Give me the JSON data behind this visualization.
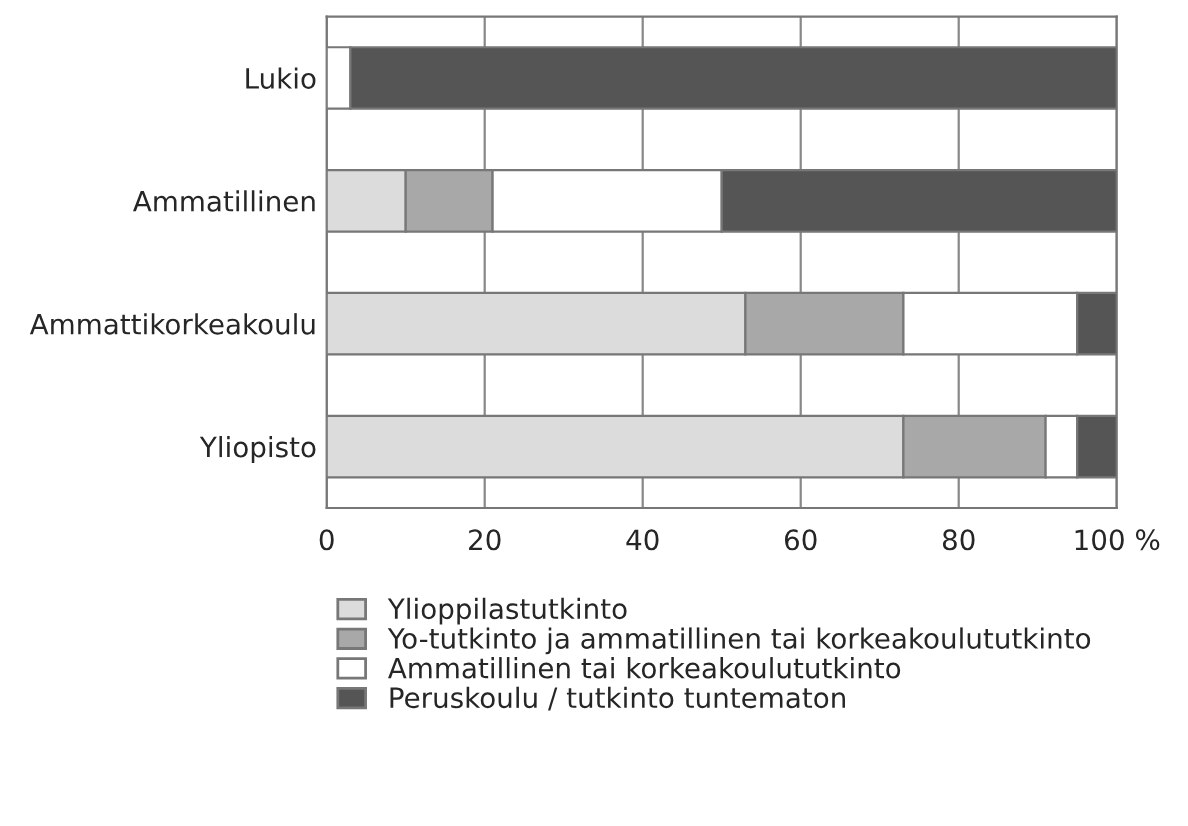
{
  "chart_data": {
    "type": "bar",
    "orientation": "horizontal",
    "stacked": true,
    "categories": [
      "Lukio",
      "Ammatillinen",
      "Ammattikorkeakoulu",
      "Yliopisto"
    ],
    "series": [
      {
        "name": "Ylioppilastutkinto",
        "color": "#dcdcdc",
        "values": [
          0,
          10,
          53,
          73
        ]
      },
      {
        "name": "Yo-tutkinto ja ammatillinen tai korkeakoulututkinto",
        "color": "#a8a8a8",
        "values": [
          0,
          11,
          20,
          18
        ]
      },
      {
        "name": "Ammatillinen tai korkeakoulututkinto",
        "color": "#ffffff",
        "values": [
          3,
          29,
          22,
          4
        ]
      },
      {
        "name": "Peruskoulu / tutkinto tuntematon",
        "color": "#555555",
        "values": [
          97,
          50,
          5,
          5
        ]
      }
    ],
    "xlim": [
      0,
      100
    ],
    "xticks": [
      0,
      20,
      40,
      60,
      {
        "value": 100,
        "label": "100 %"
      },
      80
    ],
    "grid": "x",
    "legend": "bottom"
  }
}
